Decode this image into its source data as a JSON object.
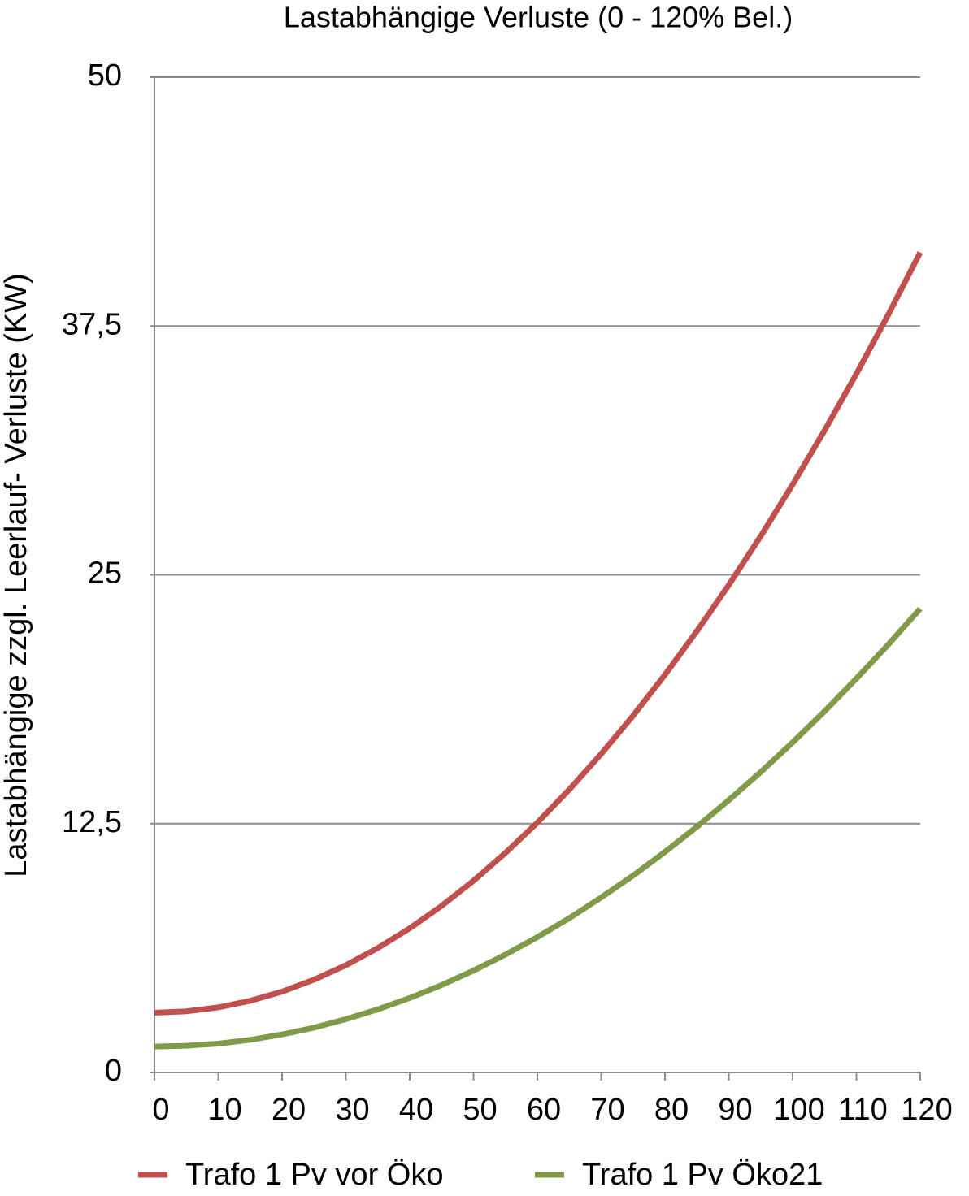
{
  "chart_data": {
    "type": "line",
    "title": "Lastabhängige Verluste (0 - 120% Bel.)",
    "y_label": "Lastabhängige zzgl. Leerlauf- Verluste (KW)",
    "x": [
      0,
      5,
      10,
      15,
      20,
      25,
      30,
      35,
      40,
      45,
      50,
      55,
      60,
      65,
      70,
      75,
      80,
      85,
      90,
      95,
      100,
      105,
      110,
      115,
      120
    ],
    "series": [
      {
        "name": "Trafo 1 Pv vor Öko",
        "color": "#c0504d",
        "values": [
          3,
          3.07,
          3.27,
          3.6,
          4.06,
          4.66,
          5.39,
          6.25,
          7.24,
          8.37,
          9.63,
          11.03,
          12.55,
          14.21,
          16.0,
          17.92,
          19.98,
          22.17,
          24.49,
          26.94,
          29.53,
          32.25,
          35.1,
          38.08,
          41.2
        ]
      },
      {
        "name": "Trafo 1 Pv Öko21",
        "color": "#7f9a48",
        "values": [
          1.3,
          1.34,
          1.45,
          1.64,
          1.91,
          2.25,
          2.68,
          3.17,
          3.74,
          4.39,
          5.12,
          5.92,
          6.8,
          7.75,
          8.79,
          9.89,
          11.08,
          12.34,
          13.68,
          15.09,
          16.58,
          18.14,
          19.79,
          21.5,
          23.3
        ]
      }
    ],
    "xlim": [
      0,
      120
    ],
    "xticks": [
      0,
      10,
      20,
      30,
      40,
      50,
      60,
      70,
      80,
      90,
      100,
      110,
      120
    ],
    "ylim": [
      0,
      50
    ],
    "yticks": [
      0,
      {
        "value": 12.5,
        "label": "12,5"
      },
      25,
      {
        "value": 37.5,
        "label": "37,5"
      },
      50
    ],
    "grid": true,
    "legend": "bottom"
  }
}
